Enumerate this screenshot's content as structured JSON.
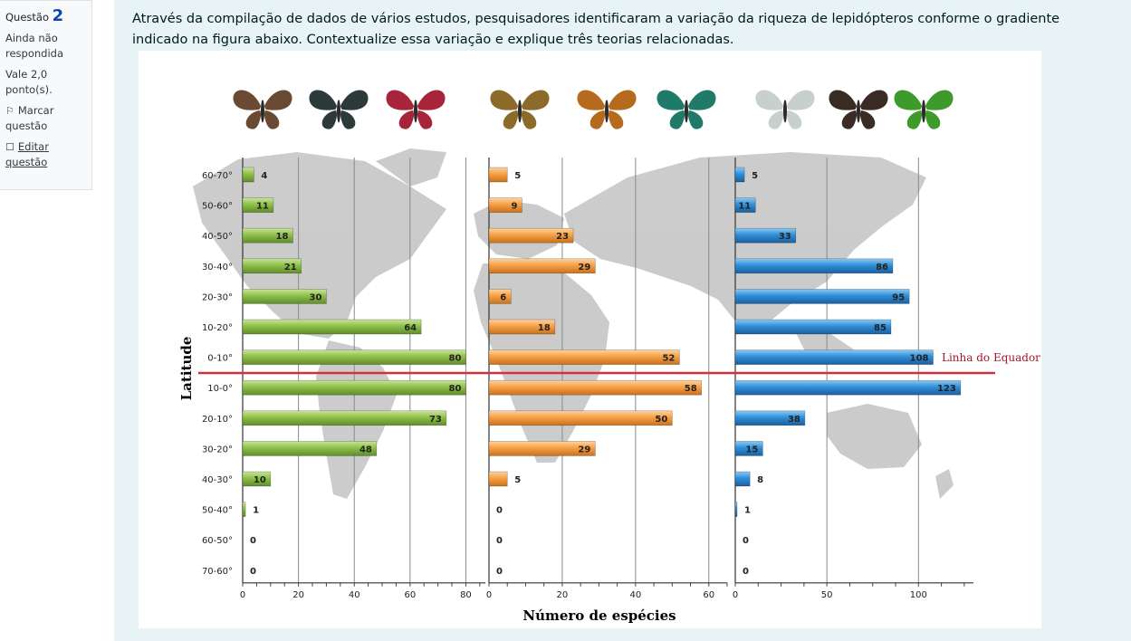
{
  "question_info": {
    "label": "Questão",
    "number": "2",
    "status_line1": "Ainda não",
    "status_line2": "respondida",
    "points_line1": "Vale 2,0",
    "points_line2": "ponto(s).",
    "flag_line1": "Marcar",
    "flag_line2": "questão",
    "edit_line1": "Editar",
    "edit_line2": "questão"
  },
  "question_text": "Através da compilação de dados de vários estudos, pesquisadores identificaram a variação da riqueza de lepidópteros conforme o gradiente indicado na figura abaixo. Contextualize essa variação e explique três teorias relacionadas.",
  "colors": {
    "green": "#8fbf4a",
    "orange": "#f6a046",
    "blue": "#2f8fd8",
    "equator": "#d23040"
  },
  "icons": [
    "butterfly-icon"
  ],
  "chart_data": {
    "type": "bar",
    "orientation": "horizontal",
    "categories": [
      "60-70°",
      "50-60°",
      "40-50°",
      "30-40°",
      "20-30°",
      "10-20°",
      "0-10°",
      "10-0°",
      "20-10°",
      "30-20°",
      "40-30°",
      "50-40°",
      "60-50°",
      "70-60°"
    ],
    "series": [
      {
        "values": [
          4,
          11,
          18,
          21,
          30,
          64,
          80,
          80,
          73,
          48,
          10,
          1,
          0,
          0
        ],
        "xlim": [
          0,
          87
        ],
        "xticks": [
          0,
          20,
          40,
          60,
          80
        ]
      },
      {
        "values": [
          5,
          9,
          23,
          29,
          6,
          18,
          52,
          58,
          50,
          29,
          5,
          0,
          0,
          0
        ],
        "xlim": [
          0,
          65
        ],
        "xticks": [
          0,
          20,
          40,
          60
        ]
      },
      {
        "values": [
          5,
          11,
          33,
          86,
          95,
          85,
          108,
          123,
          38,
          15,
          8,
          1,
          0,
          0
        ],
        "xlim": [
          0,
          130
        ],
        "xticks": [
          0,
          50,
          100
        ]
      }
    ],
    "ylabel": "Latitude",
    "xlabel": "Número de espécies",
    "annotation": "Linha do Equador",
    "grid": true
  }
}
